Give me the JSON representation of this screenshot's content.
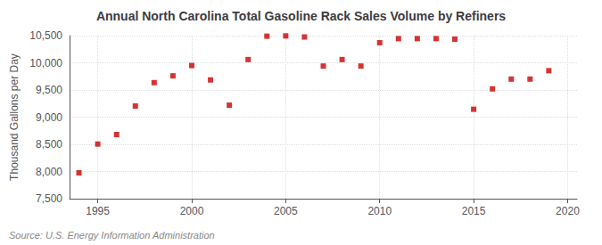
{
  "chart_data": {
    "type": "scatter",
    "title": "Annual North Carolina Total Gasoline Rack Sales Volume by Refiners",
    "ylabel": "Thousand Gallons per Day",
    "source": "Source: U.S. Energy Information Administration",
    "x": [
      1994,
      1995,
      1996,
      1997,
      1998,
      1999,
      2000,
      2001,
      2002,
      2003,
      2004,
      2005,
      2006,
      2007,
      2008,
      2009,
      2010,
      2011,
      2012,
      2013,
      2014,
      2015,
      2016,
      2017,
      2018,
      2019
    ],
    "values": [
      7975,
      8505,
      8680,
      9205,
      9635,
      9760,
      9950,
      9685,
      9220,
      10060,
      10490,
      10495,
      10475,
      9940,
      10060,
      9940,
      10370,
      10445,
      10445,
      10445,
      10435,
      9145,
      9520,
      9700,
      9700,
      9855
    ],
    "color": "#cc0000",
    "marker": "square",
    "xlim": [
      1993.5,
      2020.5
    ],
    "xticks": [
      1995,
      2000,
      2005,
      2010,
      2015,
      2020
    ],
    "ylim": [
      7500,
      10500
    ],
    "yticks": [
      {
        "value": 7500,
        "label": "7,500"
      },
      {
        "value": 8000,
        "label": "8,000"
      },
      {
        "value": 8500,
        "label": "8,500"
      },
      {
        "value": 9000,
        "label": "9,000"
      },
      {
        "value": 9500,
        "label": "9,500"
      },
      {
        "value": 10000,
        "label": "10,000"
      },
      {
        "value": 10500,
        "label": "10,500"
      }
    ],
    "grid": true
  }
}
